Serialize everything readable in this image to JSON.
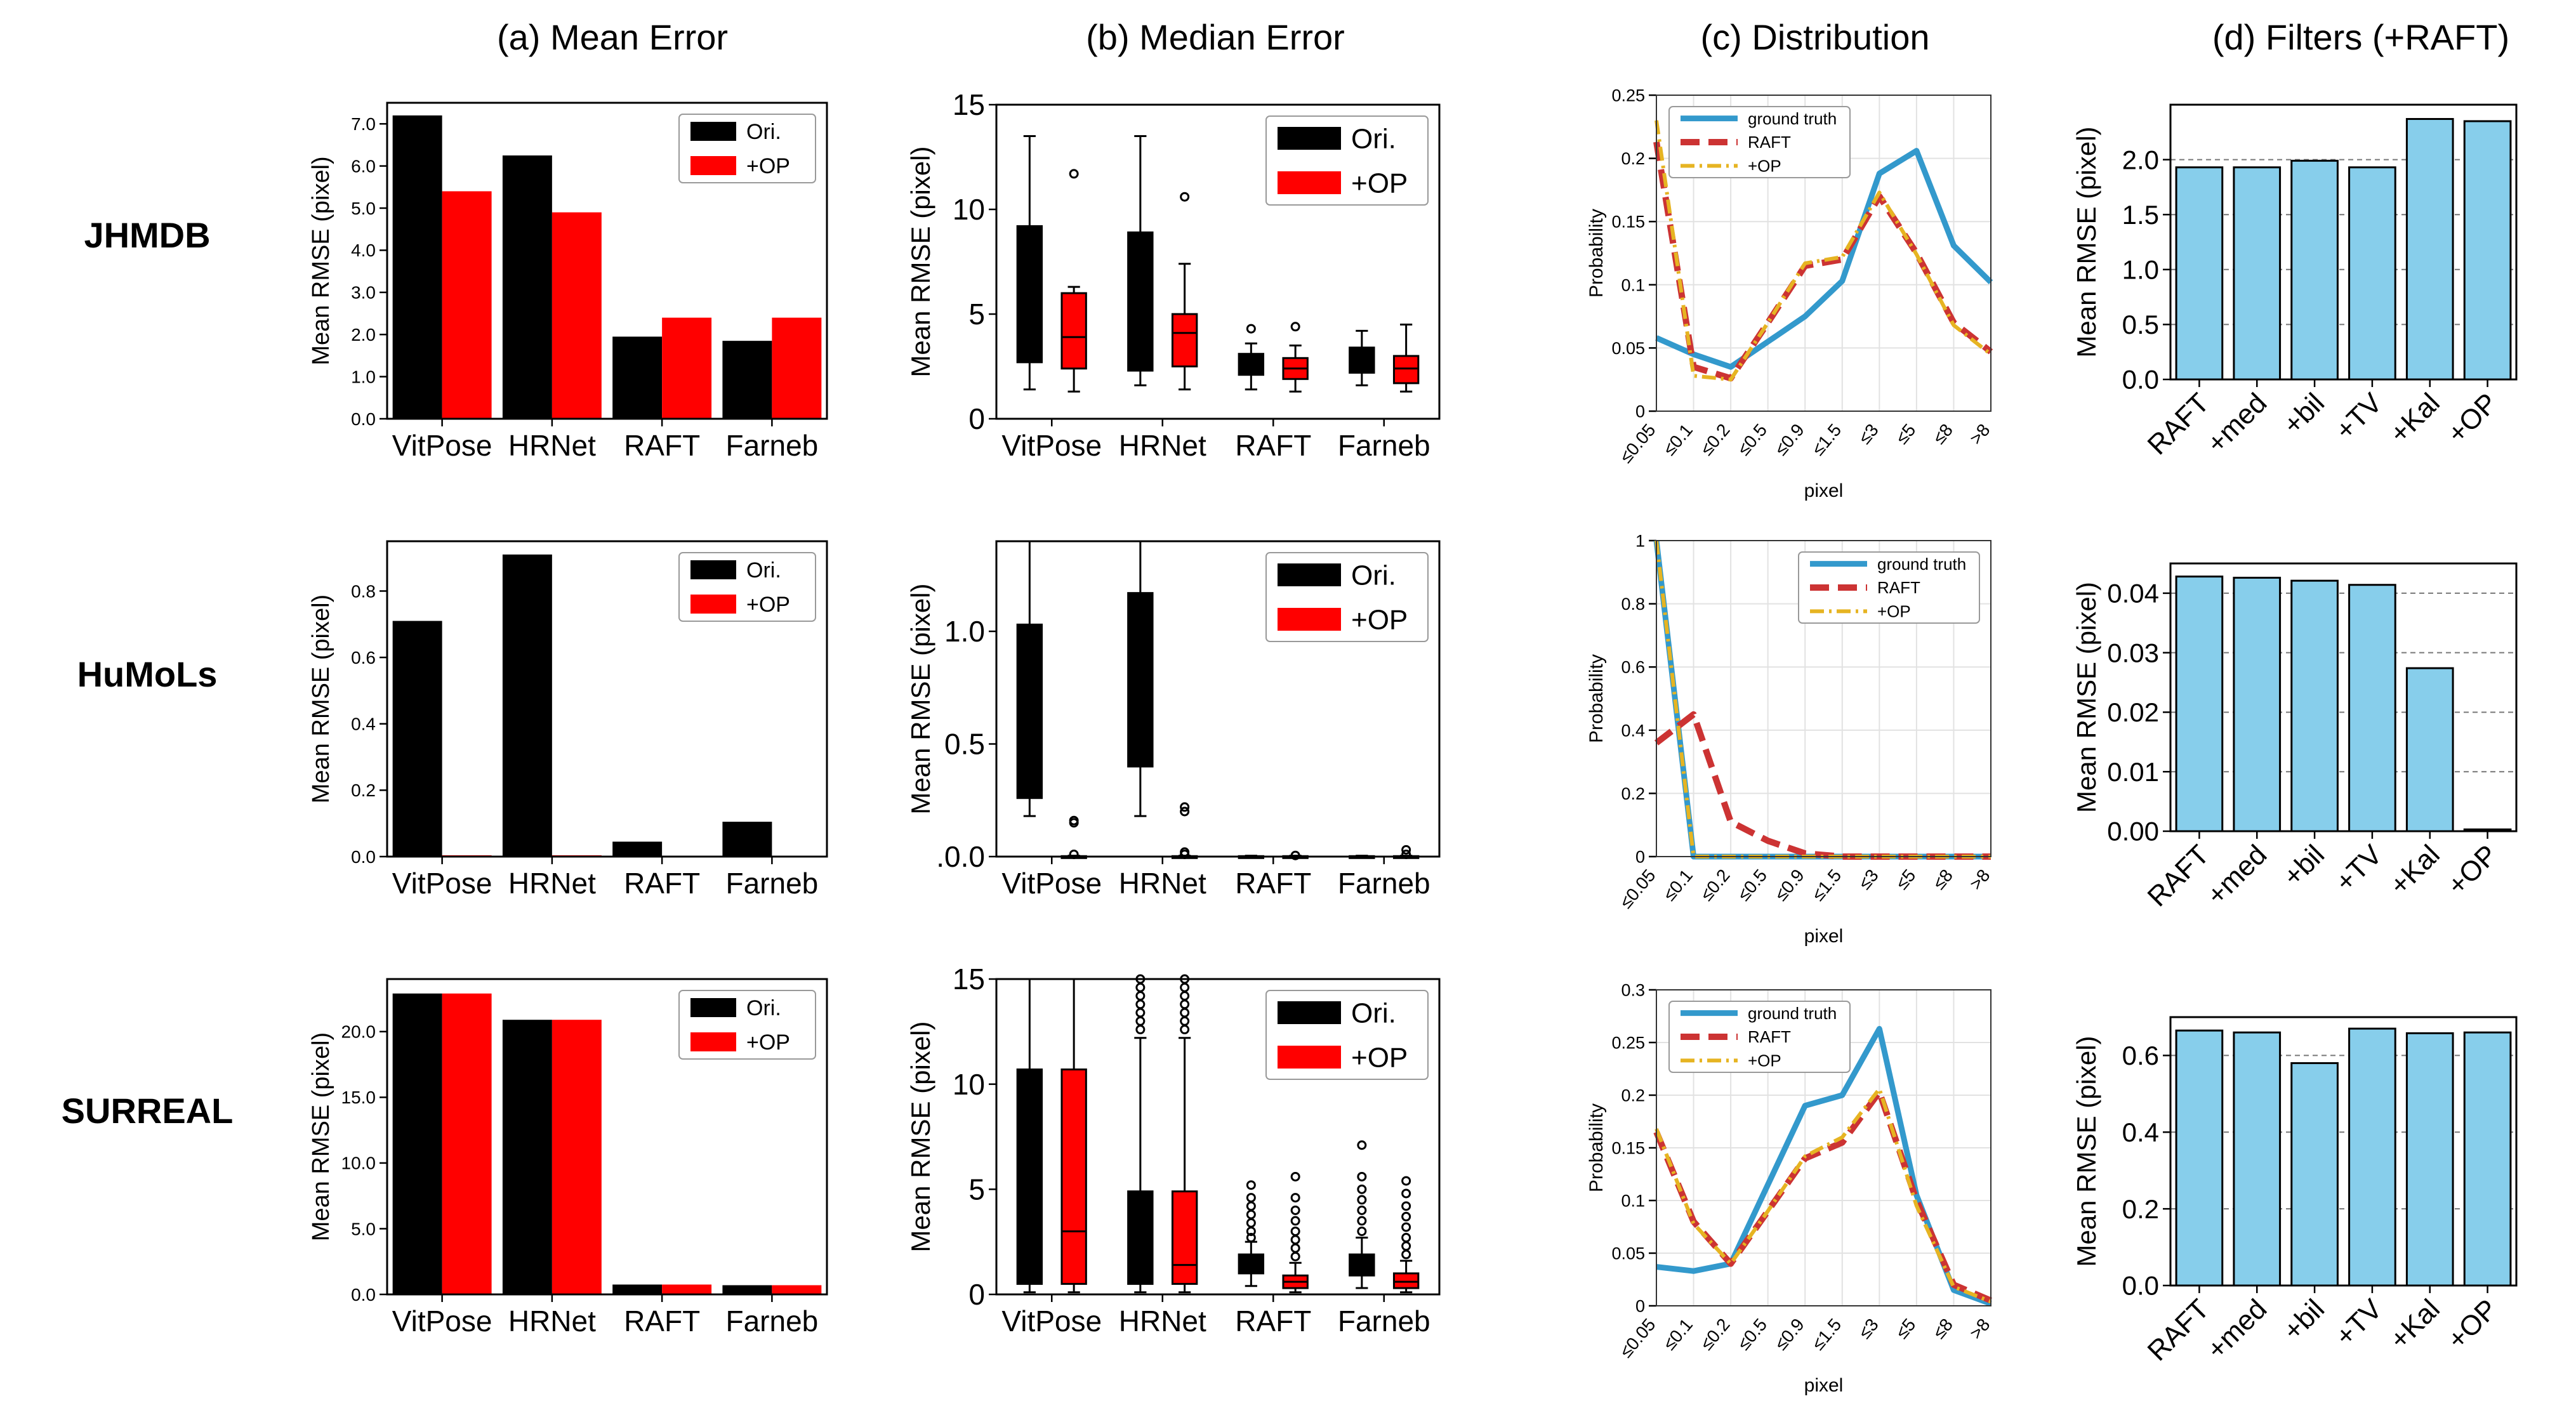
{
  "columns": [
    "(a) Mean Error",
    "(b) Median Error",
    "(c) Distribution",
    "(d) Filters (+RAFT)"
  ],
  "rows": [
    "JHMDB",
    "HuMoLs",
    "SURREAL"
  ],
  "colors": {
    "ori": "#000000",
    "op": "#ff0000",
    "gt": "#3399cc",
    "raft": "#cc3333",
    "opline": "#e6b422",
    "filter": "#87ceeb"
  },
  "chart_data": [
    {
      "id": "a-jhmdb",
      "type": "bar",
      "title": "",
      "ylabel": "Mean RMSE (pixel)",
      "categories": [
        "VitPose",
        "HRNet",
        "RAFT",
        "Farneb"
      ],
      "series": [
        {
          "name": "Ori.",
          "values": [
            7.2,
            6.25,
            1.95,
            1.85
          ]
        },
        {
          "name": "+OP",
          "values": [
            5.4,
            4.9,
            2.4,
            2.4
          ]
        }
      ],
      "ylim": [
        0,
        7.5
      ],
      "yticks": [
        0,
        1,
        2,
        3,
        4,
        5,
        6,
        7
      ],
      "yticklabels": [
        "0.0",
        "1.0",
        "2.0",
        "3.0",
        "4.0",
        "5.0",
        "6.0",
        "7.0"
      ],
      "legend": "top-right"
    },
    {
      "id": "a-humols",
      "type": "bar",
      "title": "",
      "ylabel": "Mean RMSE (pixel)",
      "categories": [
        "VitPose",
        "HRNet",
        "RAFT",
        "Farneb"
      ],
      "series": [
        {
          "name": "Ori.",
          "values": [
            0.71,
            0.91,
            0.045,
            0.105
          ]
        },
        {
          "name": "+OP",
          "values": [
            0.004,
            0.004,
            0.001,
            0.001
          ]
        }
      ],
      "ylim": [
        0,
        0.95
      ],
      "yticks": [
        0,
        0.2,
        0.4,
        0.6,
        0.8
      ],
      "yticklabels": [
        "0.0",
        "0.2",
        "0.4",
        "0.6",
        "0.8"
      ],
      "legend": "top-right"
    },
    {
      "id": "a-surreal",
      "type": "bar",
      "title": "",
      "ylabel": "Mean RMSE (pixel)",
      "categories": [
        "VitPose",
        "HRNet",
        "RAFT",
        "Farneb"
      ],
      "series": [
        {
          "name": "Ori.",
          "values": [
            22.9,
            20.9,
            0.75,
            0.7
          ]
        },
        {
          "name": "+OP",
          "values": [
            22.9,
            20.9,
            0.75,
            0.7
          ]
        }
      ],
      "ylim": [
        0,
        24
      ],
      "yticks": [
        0,
        5,
        10,
        15,
        20
      ],
      "yticklabels": [
        "0.0",
        "5.0",
        "10.0",
        "15.0",
        "20.0"
      ],
      "legend": "top-right"
    },
    {
      "id": "b-jhmdb",
      "type": "box",
      "ylabel": "Mean RMSE (pixel)",
      "categories": [
        "VitPose",
        "HRNet",
        "RAFT",
        "Farneb"
      ],
      "series": [
        {
          "name": "Ori.",
          "boxes": [
            {
              "lo": 1.4,
              "q1": 2.7,
              "med": 5.0,
              "q3": 9.2,
              "hi": 13.5,
              "fliers": []
            },
            {
              "lo": 1.6,
              "q1": 2.3,
              "med": 4.6,
              "q3": 8.9,
              "hi": 13.5,
              "fliers": []
            },
            {
              "lo": 1.4,
              "q1": 2.1,
              "med": 2.6,
              "q3": 3.1,
              "hi": 3.6,
              "fliers": [
                4.3
              ]
            },
            {
              "lo": 1.6,
              "q1": 2.2,
              "med": 2.9,
              "q3": 3.4,
              "hi": 4.2,
              "fliers": []
            }
          ]
        },
        {
          "name": "+OP",
          "boxes": [
            {
              "lo": 1.3,
              "q1": 2.4,
              "med": 3.9,
              "q3": 6.0,
              "hi": 6.3,
              "fliers": [
                11.7
              ]
            },
            {
              "lo": 1.4,
              "q1": 2.5,
              "med": 4.1,
              "q3": 5.0,
              "hi": 7.4,
              "fliers": [
                10.6
              ]
            },
            {
              "lo": 1.3,
              "q1": 1.9,
              "med": 2.4,
              "q3": 2.9,
              "hi": 3.5,
              "fliers": [
                4.4
              ]
            },
            {
              "lo": 1.3,
              "q1": 1.7,
              "med": 2.4,
              "q3": 3.0,
              "hi": 4.5,
              "fliers": []
            }
          ]
        }
      ],
      "ylim": [
        0,
        15
      ],
      "yticks": [
        0,
        5,
        10,
        15
      ],
      "yticklabels": [
        "0",
        "5",
        "10",
        "15"
      ],
      "legend": "top-right"
    },
    {
      "id": "b-humols",
      "type": "box",
      "ylabel": "Mean RMSE (pixel)",
      "categories": [
        "VitPose",
        "HRNet",
        "RAFT",
        "Farneb"
      ],
      "series": [
        {
          "name": "Ori.",
          "boxes": [
            {
              "lo": 0.18,
              "q1": 0.26,
              "med": 0.5,
              "q3": 1.03,
              "hi": 1.4,
              "fliers": []
            },
            {
              "lo": 0.18,
              "q1": 0.4,
              "med": 0.8,
              "q3": 1.17,
              "hi": 1.4,
              "fliers": []
            },
            {
              "lo": 0.0,
              "q1": 0.0,
              "med": 0.0,
              "q3": 0.002,
              "hi": 0.004,
              "fliers": []
            },
            {
              "lo": 0.0,
              "q1": 0.0,
              "med": 0.0,
              "q3": 0.002,
              "hi": 0.004,
              "fliers": []
            }
          ]
        },
        {
          "name": "+OP",
          "boxes": [
            {
              "lo": 0.0,
              "q1": 0.0,
              "med": 0.0,
              "q3": 0.002,
              "hi": 0.004,
              "fliers": [
                0.01,
                0.15,
                0.16
              ]
            },
            {
              "lo": 0.0,
              "q1": 0.0,
              "med": 0.0,
              "q3": 0.002,
              "hi": 0.004,
              "fliers": [
                0.01,
                0.02,
                0.2,
                0.22
              ]
            },
            {
              "lo": 0.0,
              "q1": 0.0,
              "med": 0.0,
              "q3": 0.002,
              "hi": 0.004,
              "fliers": [
                0.005
              ]
            },
            {
              "lo": 0.0,
              "q1": 0.0,
              "med": 0.0,
              "q3": 0.002,
              "hi": 0.004,
              "fliers": [
                0.01,
                0.03
              ]
            }
          ]
        }
      ],
      "ylim": [
        0,
        1.4
      ],
      "yticks": [
        0,
        0.5,
        1.0
      ],
      "yticklabels": [
        ".0.0",
        "0.5",
        "1.0"
      ],
      "legend": "top-right"
    },
    {
      "id": "b-surreal",
      "type": "box",
      "ylabel": "Mean RMSE (pixel)",
      "categories": [
        "VitPose",
        "HRNet",
        "RAFT",
        "Farneb"
      ],
      "series": [
        {
          "name": "Ori.",
          "boxes": [
            {
              "lo": 0.1,
              "q1": 0.5,
              "med": 3.0,
              "q3": 10.7,
              "hi": 15,
              "fliers": []
            },
            {
              "lo": 0.1,
              "q1": 0.5,
              "med": 1.4,
              "q3": 4.9,
              "hi": 12.2,
              "fliers": [
                12.6,
                13.0,
                13.4,
                13.8,
                14.2,
                14.6,
                15
              ]
            },
            {
              "lo": 0.4,
              "q1": 1.0,
              "med": 1.4,
              "q3": 1.9,
              "hi": 2.5,
              "fliers": [
                2.7,
                3.0,
                3.4,
                3.8,
                4.2,
                4.6,
                5.2
              ]
            },
            {
              "lo": 0.3,
              "q1": 0.9,
              "med": 1.3,
              "q3": 1.9,
              "hi": 2.7,
              "fliers": [
                3.0,
                3.5,
                4.0,
                4.5,
                5.0,
                5.6,
                7.1
              ]
            }
          ]
        },
        {
          "name": "+OP",
          "boxes": [
            {
              "lo": 0.1,
              "q1": 0.5,
              "med": 3.0,
              "q3": 10.7,
              "hi": 15,
              "fliers": []
            },
            {
              "lo": 0.1,
              "q1": 0.5,
              "med": 1.4,
              "q3": 4.9,
              "hi": 12.2,
              "fliers": [
                12.6,
                13.0,
                13.4,
                13.8,
                14.2,
                14.6,
                15
              ]
            },
            {
              "lo": 0.1,
              "q1": 0.3,
              "med": 0.6,
              "q3": 0.9,
              "hi": 1.5,
              "fliers": [
                1.8,
                2.2,
                2.6,
                3.0,
                3.5,
                4.0,
                4.6,
                5.6
              ]
            },
            {
              "lo": 0.1,
              "q1": 0.3,
              "med": 0.6,
              "q3": 1.0,
              "hi": 1.6,
              "fliers": [
                1.9,
                2.3,
                2.7,
                3.2,
                3.7,
                4.2,
                4.8,
                5.4
              ]
            }
          ]
        }
      ],
      "ylim": [
        0,
        15
      ],
      "yticks": [
        0,
        5,
        10,
        15
      ],
      "yticklabels": [
        "0",
        "5",
        "10",
        "15"
      ],
      "legend": "top-right"
    },
    {
      "id": "c-jhmdb",
      "type": "line",
      "ylabel": "Probability",
      "xlabel": "pixel",
      "categories": [
        "≤0.05",
        "≤0.1",
        "≤0.2",
        "≤0.5",
        "≤0.9",
        "≤1.5",
        "≤3",
        "≤5",
        "≤8",
        ">8"
      ],
      "series": [
        {
          "name": "ground truth",
          "style": "solid",
          "values": [
            0.058,
            0.045,
            0.035,
            0.055,
            0.075,
            0.103,
            0.188,
            0.206,
            0.131,
            0.102
          ]
        },
        {
          "name": "RAFT",
          "style": "dashed",
          "values": [
            0.213,
            0.035,
            0.026,
            0.07,
            0.115,
            0.12,
            0.17,
            0.125,
            0.07,
            0.047
          ]
        },
        {
          "name": "+OP",
          "style": "dashdot",
          "values": [
            0.23,
            0.028,
            0.025,
            0.07,
            0.117,
            0.122,
            0.173,
            0.124,
            0.068,
            0.045
          ]
        }
      ],
      "ylim": [
        0,
        0.25
      ],
      "yticks": [
        0,
        0.05,
        0.1,
        0.15,
        0.2,
        0.25
      ],
      "yticklabels": [
        "0",
        "0.05",
        "0.1",
        "0.15",
        "0.2",
        "0.25"
      ],
      "legend": "top-left"
    },
    {
      "id": "c-humols",
      "type": "line",
      "ylabel": "Probability",
      "xlabel": "pixel",
      "categories": [
        "≤0.05",
        "≤0.1",
        "≤0.2",
        "≤0.5",
        "≤0.9",
        "≤1.5",
        "≤3",
        "≤5",
        "≤8",
        ">8"
      ],
      "series": [
        {
          "name": "ground truth",
          "style": "solid",
          "values": [
            1.0,
            0.0,
            0.0,
            0.0,
            0.0,
            0.0,
            0.0,
            0.0,
            0.0,
            0.0
          ]
        },
        {
          "name": "RAFT",
          "style": "dashed",
          "values": [
            0.36,
            0.45,
            0.11,
            0.05,
            0.01,
            0.0,
            0.0,
            0.0,
            0.0,
            0.0
          ]
        },
        {
          "name": "+OP",
          "style": "dashdot",
          "values": [
            1.0,
            0.0,
            0.0,
            0.0,
            0.0,
            0.0,
            0.0,
            0.0,
            0.0,
            0.0
          ]
        }
      ],
      "ylim": [
        0,
        1
      ],
      "yticks": [
        0,
        0.2,
        0.4,
        0.6,
        0.8,
        1
      ],
      "yticklabels": [
        "0",
        "0.2",
        "0.4",
        "0.6",
        "0.8",
        "1"
      ],
      "legend": "top-right"
    },
    {
      "id": "c-surreal",
      "type": "line",
      "ylabel": "Probability",
      "xlabel": "pixel",
      "categories": [
        "≤0.05",
        "≤0.1",
        "≤0.2",
        "≤0.5",
        "≤0.9",
        "≤1.5",
        "≤3",
        "≤5",
        "≤8",
        ">8"
      ],
      "series": [
        {
          "name": "ground truth",
          "style": "solid",
          "values": [
            0.037,
            0.033,
            0.04,
            0.115,
            0.19,
            0.2,
            0.263,
            0.105,
            0.015,
            0.002
          ]
        },
        {
          "name": "RAFT",
          "style": "dashed",
          "values": [
            0.165,
            0.08,
            0.04,
            0.09,
            0.14,
            0.155,
            0.203,
            0.1,
            0.02,
            0.005
          ]
        },
        {
          "name": "+OP",
          "style": "dashdot",
          "values": [
            0.168,
            0.078,
            0.04,
            0.09,
            0.142,
            0.16,
            0.206,
            0.095,
            0.018,
            0.004
          ]
        }
      ],
      "ylim": [
        0,
        0.3
      ],
      "yticks": [
        0,
        0.05,
        0.1,
        0.15,
        0.2,
        0.25,
        0.3
      ],
      "yticklabels": [
        "0",
        "0.05",
        "0.1",
        "0.15",
        "0.2",
        "0.25",
        "0.3"
      ],
      "legend": "top-left"
    },
    {
      "id": "d-jhmdb",
      "type": "bar",
      "ylabel": "Mean RMSE (pixel)",
      "categories": [
        "RAFT",
        "+med",
        "+bil",
        "+TV",
        "+Kal",
        "+OP"
      ],
      "values": [
        1.93,
        1.93,
        1.99,
        1.93,
        2.37,
        2.35
      ],
      "ylim": [
        0,
        2.5
      ],
      "yticks": [
        0,
        0.5,
        1.0,
        1.5,
        2.0
      ],
      "yticklabels": [
        "0.0",
        "0.5",
        "1.0",
        "1.5",
        "2.0"
      ]
    },
    {
      "id": "d-humols",
      "type": "bar",
      "ylabel": "Mean RMSE (pixel)",
      "categories": [
        "RAFT",
        "+med",
        "+bil",
        "+TV",
        "+Kal",
        "+OP"
      ],
      "values": [
        0.0428,
        0.0426,
        0.0421,
        0.0414,
        0.0274,
        0.0003
      ],
      "ylim": [
        0,
        0.045
      ],
      "yticks": [
        0,
        0.01,
        0.02,
        0.03,
        0.04
      ],
      "yticklabels": [
        "0.00",
        "0.01",
        "0.02",
        "0.03",
        "0.04"
      ]
    },
    {
      "id": "d-surreal",
      "type": "bar",
      "ylabel": "Mean RMSE (pixel)",
      "categories": [
        "RAFT",
        "+med",
        "+bil",
        "+TV",
        "+Kal",
        "+OP"
      ],
      "values": [
        0.665,
        0.66,
        0.58,
        0.67,
        0.658,
        0.66
      ],
      "ylim": [
        0,
        0.7
      ],
      "yticks": [
        0,
        0.2,
        0.4,
        0.6
      ],
      "yticklabels": [
        "0.0",
        "0.2",
        "0.4",
        "0.6"
      ]
    }
  ]
}
